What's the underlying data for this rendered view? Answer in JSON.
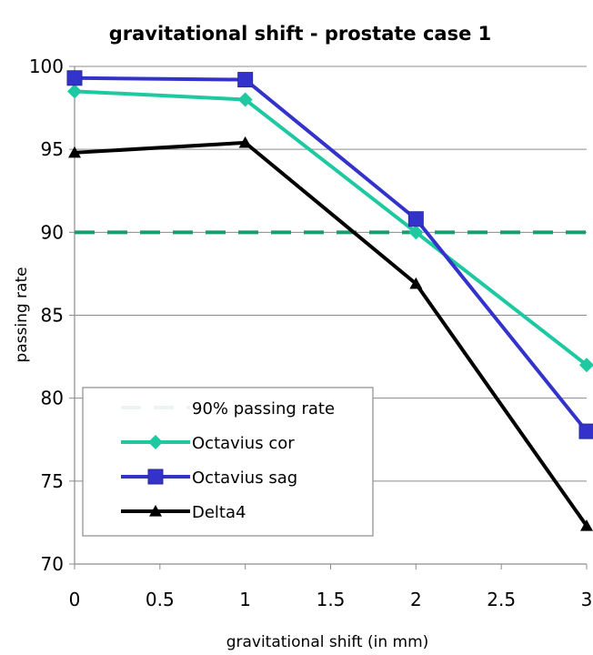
{
  "chart_data": {
    "type": "line",
    "title": "gravitational shift - prostate case 1",
    "xlabel": "gravitational shift (in mm)",
    "ylabel": "passing rate",
    "xlim": [
      0,
      3
    ],
    "ylim": [
      70,
      100
    ],
    "xticks": [
      "0",
      "0.5",
      "1",
      "1.5",
      "2",
      "2.5",
      "3"
    ],
    "yticks": [
      "70",
      "75",
      "80",
      "85",
      "90",
      "95",
      "100"
    ],
    "grid": "horizontal",
    "legend_position": "bottom-left",
    "series": [
      {
        "name": "90% passing rate",
        "style": "dashed",
        "marker": "none",
        "color": "#1a9c6e",
        "x": [
          0,
          3
        ],
        "y": [
          90,
          90
        ]
      },
      {
        "name": "Octavius cor",
        "style": "solid",
        "marker": "diamond",
        "color": "#1ec8a0",
        "x": [
          0,
          1,
          2,
          3
        ],
        "y": [
          98.5,
          98.0,
          90.0,
          82.0
        ]
      },
      {
        "name": "Octavius sag",
        "style": "solid",
        "marker": "square",
        "color": "#3333cc",
        "x": [
          0,
          1,
          2,
          3
        ],
        "y": [
          99.3,
          99.2,
          90.8,
          78.0
        ]
      },
      {
        "name": "Delta4",
        "style": "solid",
        "marker": "triangle",
        "color": "#000000",
        "x": [
          0,
          1,
          2,
          3
        ],
        "y": [
          94.8,
          95.4,
          86.9,
          72.3
        ]
      }
    ]
  }
}
